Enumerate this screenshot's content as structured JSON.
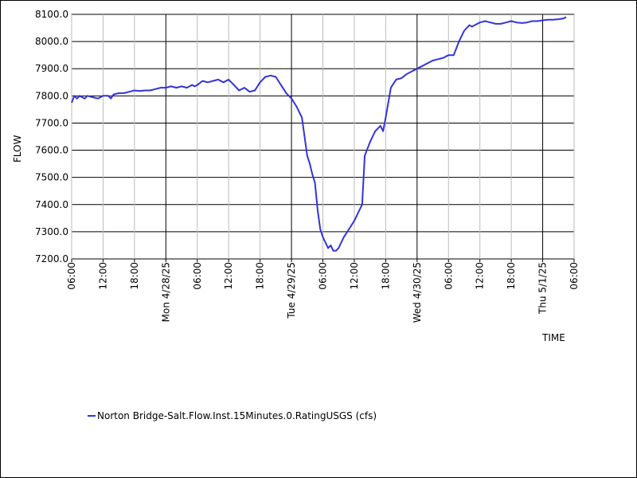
{
  "chart_data": {
    "type": "line",
    "xlabel": "TIME",
    "ylabel": "FLOW",
    "ylim": [
      7200,
      8100
    ],
    "y_ticks": [
      "7200.0",
      "7300.0",
      "7400.0",
      "7500.0",
      "7600.0",
      "7700.0",
      "7800.0",
      "7900.0",
      "8000.0",
      "8100.0"
    ],
    "x_range_hours": [
      0,
      96
    ],
    "x_tick_labels": [
      "06:00",
      "12:00",
      "18:00",
      "Mon 4/28/25",
      "06:00",
      "12:00",
      "18:00",
      "Tue 4/29/25",
      "06:00",
      "12:00",
      "18:00",
      "Wed 4/30/25",
      "06:00",
      "12:00",
      "18:00",
      "Thu 5/1/25",
      "06:00"
    ],
    "grid": true,
    "legend_position": "bottom-left",
    "line_color": "#3333dd",
    "series": [
      {
        "name": "Norton Bridge-Salt.Flow.Inst.15Minutes.0.RatingUSGS (cfs)",
        "x": [
          0,
          0.5,
          1,
          1.5,
          2,
          2.5,
          3,
          4,
          5,
          6,
          7,
          7.5,
          8,
          9,
          10,
          11,
          12,
          13,
          14,
          15,
          16,
          17,
          18,
          19,
          20,
          21,
          22,
          23,
          23.5,
          24,
          25,
          26,
          27,
          28,
          29,
          30,
          31,
          32,
          33,
          34,
          35,
          36,
          37,
          38,
          39,
          40,
          41,
          42,
          43,
          44,
          45,
          45.5,
          46,
          46.5,
          47,
          47.5,
          48,
          48.5,
          49,
          49.5,
          50,
          50.5,
          51,
          51.5,
          52,
          53,
          54,
          55,
          55.5,
          56,
          57,
          57.5,
          58,
          58.5,
          59,
          59.5,
          60,
          61,
          62,
          63,
          64,
          65,
          66,
          67,
          68,
          69,
          70,
          71,
          72,
          73,
          74,
          75,
          76,
          76.5,
          77,
          78,
          79,
          80,
          81,
          82,
          83,
          84,
          85,
          86,
          87,
          88,
          89,
          90,
          91,
          92,
          93,
          94,
          94.5
        ],
        "y": [
          7775,
          7800,
          7790,
          7800,
          7795,
          7790,
          7800,
          7795,
          7790,
          7800,
          7800,
          7790,
          7805,
          7810,
          7810,
          7815,
          7820,
          7818,
          7820,
          7820,
          7825,
          7830,
          7830,
          7835,
          7830,
          7835,
          7830,
          7840,
          7835,
          7840,
          7855,
          7850,
          7855,
          7860,
          7850,
          7860,
          7840,
          7820,
          7830,
          7815,
          7820,
          7850,
          7870,
          7875,
          7870,
          7840,
          7810,
          7790,
          7760,
          7720,
          7580,
          7550,
          7510,
          7480,
          7380,
          7310,
          7280,
          7260,
          7240,
          7250,
          7230,
          7230,
          7240,
          7260,
          7280,
          7310,
          7340,
          7380,
          7400,
          7580,
          7630,
          7650,
          7670,
          7680,
          7690,
          7670,
          7720,
          7830,
          7860,
          7865,
          7880,
          7890,
          7900,
          7910,
          7920,
          7930,
          7935,
          7940,
          7950,
          7950,
          8000,
          8040,
          8060,
          8055,
          8060,
          8070,
          8075,
          8070,
          8065,
          8065,
          8070,
          8075,
          8070,
          8068,
          8070,
          8075,
          8075,
          8078,
          8080,
          8080,
          8082,
          8085,
          8090
        ]
      }
    ]
  }
}
